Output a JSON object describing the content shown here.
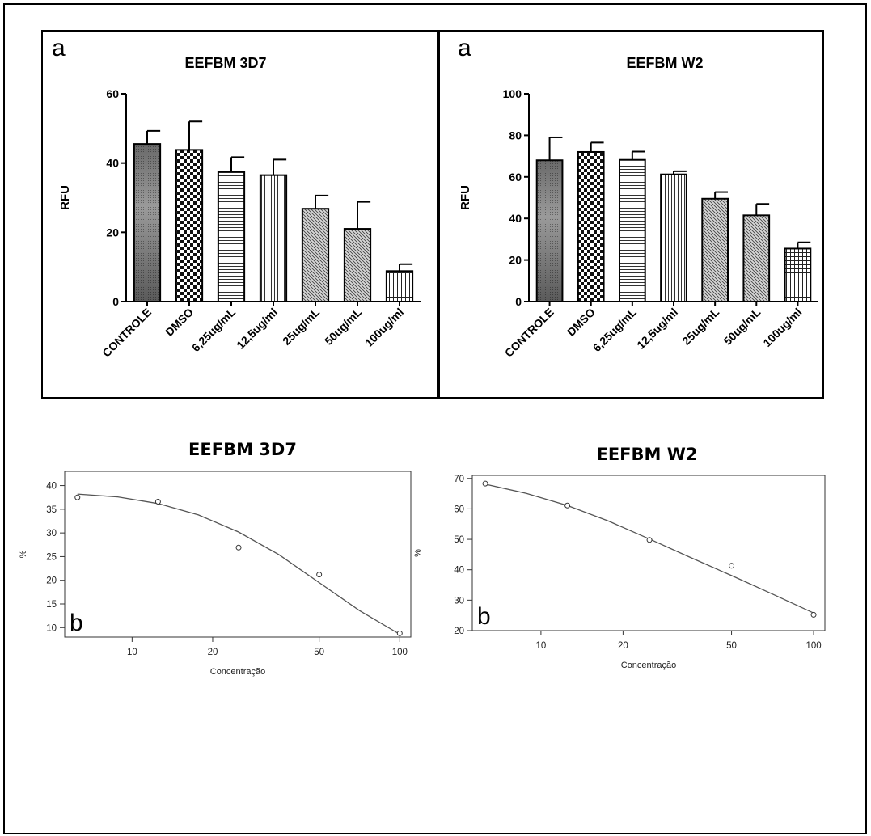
{
  "chart_data": [
    {
      "type": "bar",
      "panel_letter": "a",
      "title": "EEFBM 3D7",
      "ylabel": "RFU",
      "ylim": [
        0,
        60
      ],
      "yticks": [
        0,
        20,
        40,
        60
      ],
      "categories": [
        "CONTROLE",
        "DMSO",
        "6,25ug/mL",
        "12,5ug/ml",
        "25ug/mL",
        "50ug/mL",
        "100ug/ml"
      ],
      "values": [
        45.5,
        43.8,
        37.5,
        36.5,
        26.8,
        21.0,
        8.8
      ],
      "errors": [
        3.8,
        8.2,
        4.2,
        4.5,
        3.8,
        7.8,
        2.0
      ],
      "patterns": [
        "shade",
        "check",
        "hlines",
        "vlines",
        "diag",
        "diag",
        "grid"
      ]
    },
    {
      "type": "bar",
      "panel_letter": "a",
      "title": "EEFBM W2",
      "ylabel": "RFU",
      "ylim": [
        0,
        100
      ],
      "yticks": [
        0,
        20,
        40,
        60,
        80,
        100
      ],
      "categories": [
        "CONTROLE",
        "DMSO",
        "6,25ug/mL",
        "12,5ug/ml",
        "25ug/mL",
        "50ug/mL",
        "100ug/ml"
      ],
      "values": [
        68.0,
        72.0,
        68.2,
        61.2,
        49.5,
        41.5,
        25.5
      ],
      "errors": [
        11.0,
        4.5,
        4.0,
        1.5,
        3.2,
        5.5,
        3.0
      ],
      "patterns": [
        "shade",
        "check",
        "hlines",
        "vlines",
        "diag",
        "diag",
        "grid"
      ]
    },
    {
      "type": "scatter",
      "panel_letter": "b",
      "title": "EEFBM 3D7",
      "xlabel": "Concentração",
      "ylabel": "%",
      "xscale": "log",
      "xlim": [
        5.6,
        110
      ],
      "ylim": [
        8,
        43
      ],
      "xticks": [
        10,
        20,
        50,
        100
      ],
      "yticks": [
        10,
        15,
        20,
        25,
        30,
        35,
        40
      ],
      "points": [
        [
          6.25,
          37.5
        ],
        [
          12.5,
          36.6
        ],
        [
          25,
          26.9
        ],
        [
          50,
          21.2
        ],
        [
          100,
          8.8
        ]
      ],
      "fit": [
        [
          6.25,
          38.2
        ],
        [
          8.84,
          37.6
        ],
        [
          12.5,
          36.2
        ],
        [
          17.7,
          33.8
        ],
        [
          25,
          30.2
        ],
        [
          35.4,
          25.4
        ],
        [
          50,
          19.5
        ],
        [
          70.7,
          13.6
        ],
        [
          100,
          8.6
        ]
      ]
    },
    {
      "type": "scatter",
      "panel_letter": "b",
      "title": "EEFBM W2",
      "xlabel": "Concentração",
      "ylabel": "%",
      "xscale": "log",
      "xlim": [
        5.6,
        110
      ],
      "ylim": [
        20,
        71
      ],
      "xticks": [
        10,
        20,
        50,
        100
      ],
      "yticks": [
        20,
        30,
        40,
        50,
        60,
        70
      ],
      "points": [
        [
          6.25,
          68.3
        ],
        [
          12.5,
          61.1
        ],
        [
          25,
          49.8
        ],
        [
          50,
          41.3
        ],
        [
          100,
          25.2
        ]
      ],
      "fit": [
        [
          6.25,
          68.1
        ],
        [
          8.84,
          65.1
        ],
        [
          12.5,
          61.1
        ],
        [
          17.7,
          56.0
        ],
        [
          25,
          50.1
        ],
        [
          35.4,
          44.0
        ],
        [
          50,
          38.1
        ],
        [
          70.7,
          32.0
        ],
        [
          100,
          25.8
        ]
      ]
    }
  ]
}
